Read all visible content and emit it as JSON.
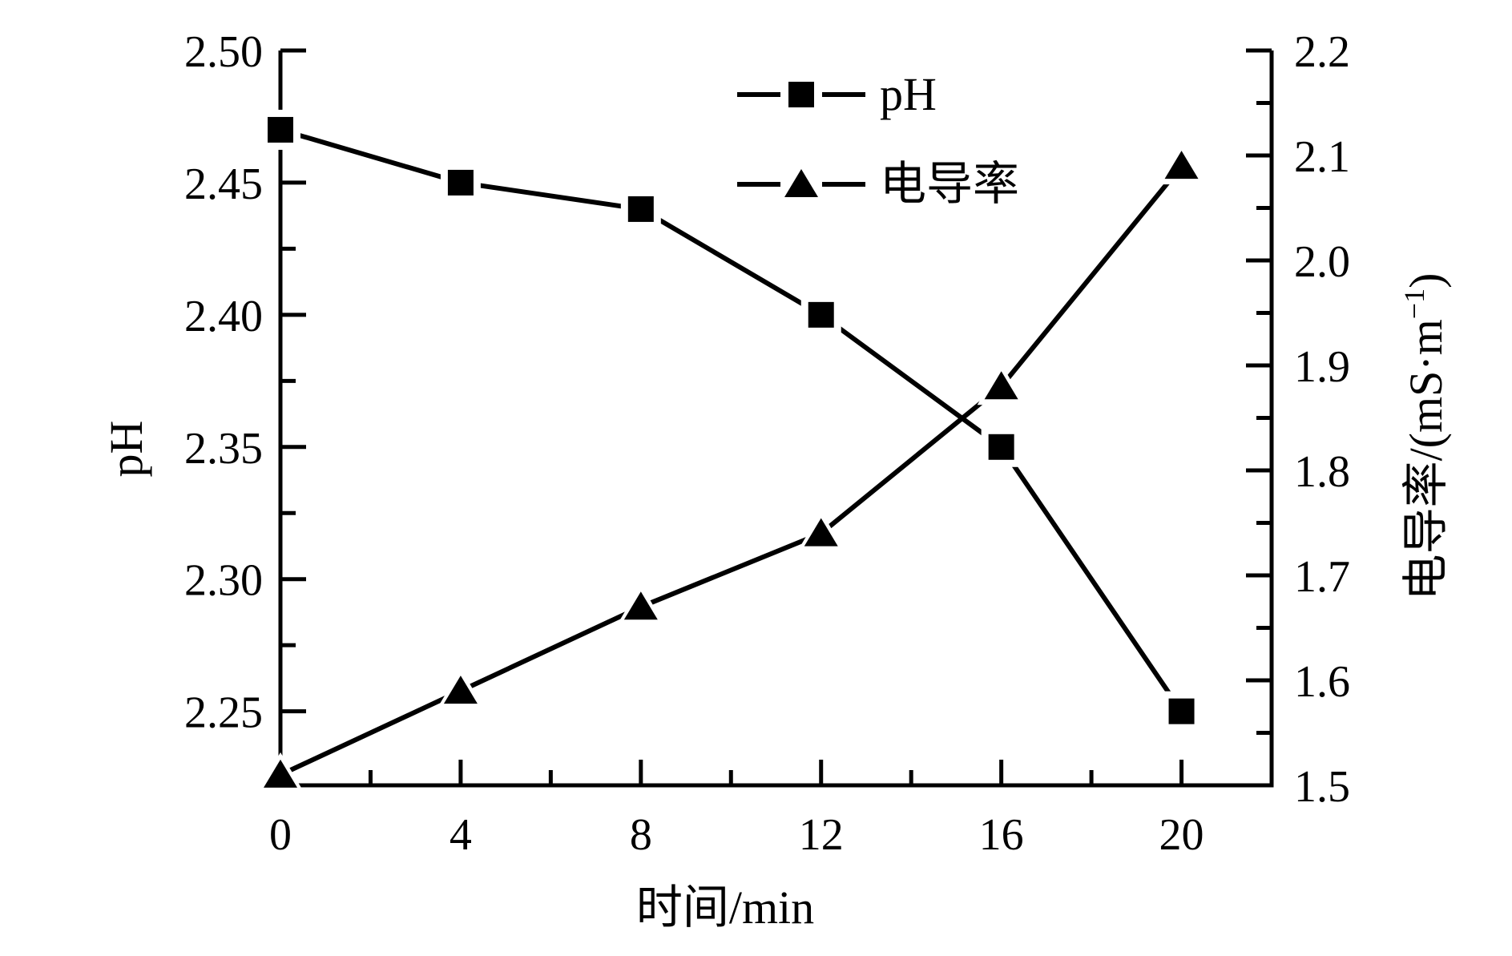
{
  "page": {
    "background": "#ffffff",
    "foreground": "#000000"
  },
  "chart_data": {
    "type": "line",
    "title": "",
    "x": [
      0,
      4,
      8,
      12,
      16,
      20
    ],
    "series": [
      {
        "name": "pH",
        "axis": "left",
        "marker": "square",
        "color": "#000000",
        "values": [
          2.47,
          2.45,
          2.44,
          2.4,
          2.35,
          2.25
        ]
      },
      {
        "name": "电导率",
        "axis": "right",
        "marker": "triangle",
        "color": "#000000",
        "values": [
          1.51,
          1.59,
          1.67,
          1.74,
          1.88,
          2.09
        ]
      }
    ],
    "xlabel": "时间/min",
    "ylabel_left": "pH",
    "ylabel_right": "电导率/(mS·m⁻¹)",
    "ylabel_right_parts": {
      "prefix": "电导率/(mS·m",
      "sup": "−1",
      "suffix": ")"
    },
    "xlim": [
      0,
      22
    ],
    "ylim_left": [
      2.222,
      2.5
    ],
    "ylim_right": [
      1.5,
      2.2
    ],
    "xticks": {
      "values": [
        0,
        4,
        8,
        12,
        16,
        20
      ],
      "labels": [
        "0",
        "4",
        "8",
        "12",
        "16",
        "20"
      ],
      "minor": [
        2,
        6,
        10,
        14,
        18
      ]
    },
    "yticks_left": {
      "values": [
        2.25,
        2.3,
        2.35,
        2.4,
        2.45,
        2.5
      ],
      "labels": [
        "2.25",
        "2.30",
        "2.35",
        "2.40",
        "2.45",
        "2.50"
      ],
      "minor": [
        2.275,
        2.325,
        2.375,
        2.425,
        2.475
      ]
    },
    "yticks_right": {
      "values": [
        1.5,
        1.6,
        1.7,
        1.8,
        1.9,
        2.0,
        2.1,
        2.2
      ],
      "labels": [
        "1.5",
        "1.6",
        "1.7",
        "1.8",
        "1.9",
        "2.0",
        "2.1",
        "2.2"
      ],
      "minor": [
        1.55,
        1.65,
        1.75,
        1.85,
        1.95,
        2.05,
        2.15
      ]
    },
    "legend": {
      "items": [
        {
          "label": "pH",
          "marker": "square"
        },
        {
          "label": "电导率",
          "marker": "triangle"
        }
      ]
    },
    "grid": false,
    "legend_position": "inside-top-center"
  }
}
